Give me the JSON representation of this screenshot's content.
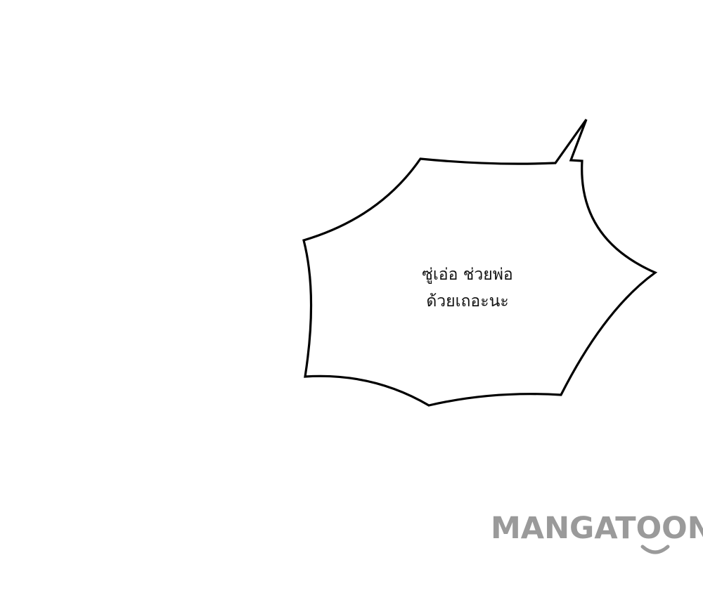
{
  "speech_bubble": {
    "line1": "ซู่เอ่อ ช่วยพ่อ",
    "line2": "ด้วยเถอะนะ"
  },
  "watermark": {
    "text": "MANGATOON"
  }
}
